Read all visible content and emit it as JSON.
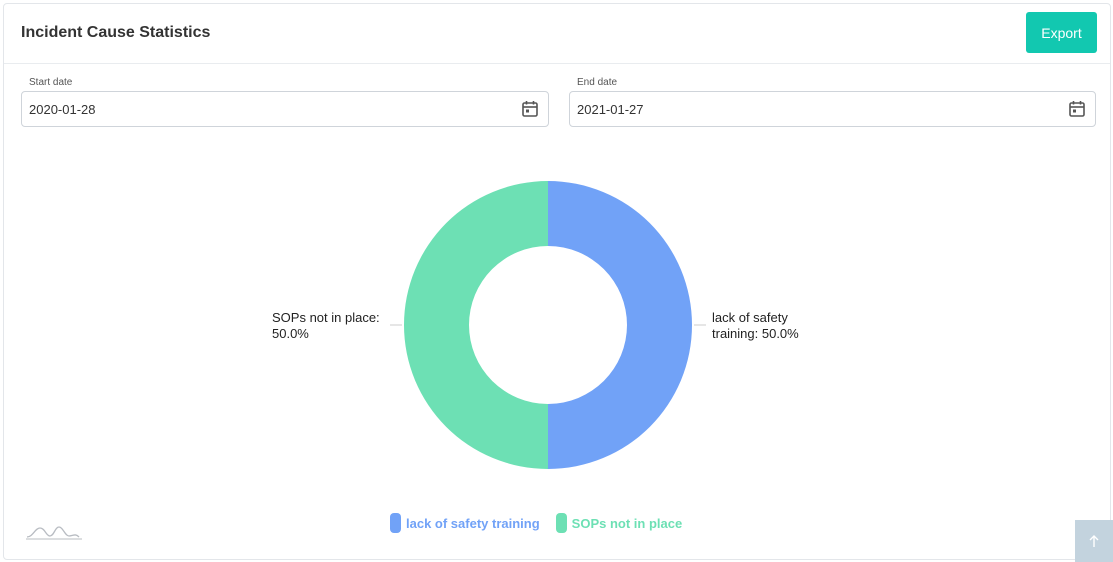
{
  "header": {
    "title": "Incident Cause Statistics",
    "export_label": "Export"
  },
  "filters": {
    "start": {
      "label": "Start date",
      "value": "2020-01-28",
      "icon": "calendar-icon"
    },
    "end": {
      "label": "End date",
      "value": "2021-01-27",
      "icon": "calendar-icon"
    }
  },
  "chart_data": {
    "type": "pie",
    "variant": "donut",
    "categories": [
      "lack of safety training",
      "SOPs not in place"
    ],
    "values": [
      50.0,
      50.0
    ],
    "colors": [
      "#71a2f7",
      "#6de0b4"
    ],
    "data_labels": [
      [
        "lack of safety",
        "training: 50.0%"
      ],
      [
        "SOPs not in place:",
        "50.0%"
      ]
    ],
    "legend_position": "bottom-center"
  },
  "legend": {
    "items": [
      {
        "label": "lack of safety training",
        "color": "#71a2f7"
      },
      {
        "label": "SOPs not in place",
        "color": "#6de0b4"
      }
    ]
  },
  "widgets": {
    "scroll_top_icon": "arrow-up-icon",
    "watermark_icon": "chart-logo-icon"
  }
}
